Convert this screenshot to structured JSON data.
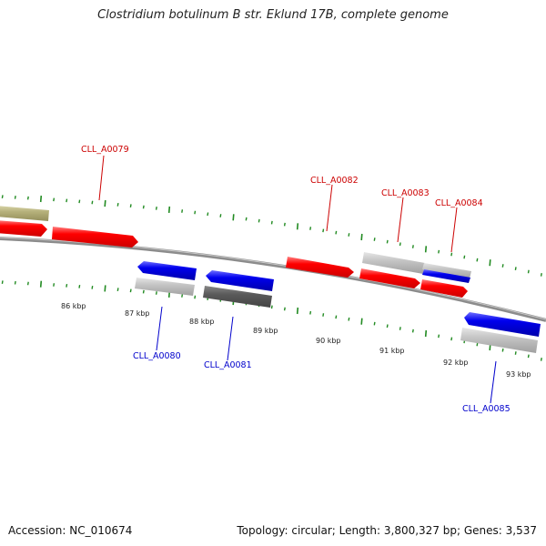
{
  "title": "Clostridium botulinum B str. Eklund 17B, complete genome",
  "footer": {
    "accession": "Accession: NC_010674",
    "stats": "Topology: circular; Length: 3,800,327 bp; Genes: 3,537"
  },
  "colors": {
    "forward": "#ff0000",
    "reverse": "#0000ee",
    "other_gene": "#c0c0c0",
    "dark_gene": "#555555",
    "olive_gene": "#b5b07a",
    "ticks": "#228b22",
    "backbone": "#888888",
    "forward_label": "#cc0000",
    "reverse_label": "#0000cc"
  },
  "gene_labels": [
    {
      "id": "fwd-CLL_A0079",
      "text": "CLL_A0079",
      "strand": "forward"
    },
    {
      "id": "rev-CLL_A0080",
      "text": "CLL_A0080",
      "strand": "reverse"
    },
    {
      "id": "rev-CLL_A0081",
      "text": "CLL_A0081",
      "strand": "reverse"
    },
    {
      "id": "fwd-CLL_A0082",
      "text": "CLL_A0082",
      "strand": "forward"
    },
    {
      "id": "fwd-CLL_A0083",
      "text": "CLL_A0083",
      "strand": "forward"
    },
    {
      "id": "fwd-CLL_A0084",
      "text": "CLL_A0084",
      "strand": "forward"
    },
    {
      "id": "rev-CLL_A0085",
      "text": "CLL_A0085",
      "strand": "reverse"
    }
  ],
  "scale_labels": [
    "86 kbp",
    "87 kbp",
    "88 kbp",
    "89 kbp",
    "90 kbp",
    "91 kbp",
    "92 kbp",
    "93 kbp"
  ]
}
